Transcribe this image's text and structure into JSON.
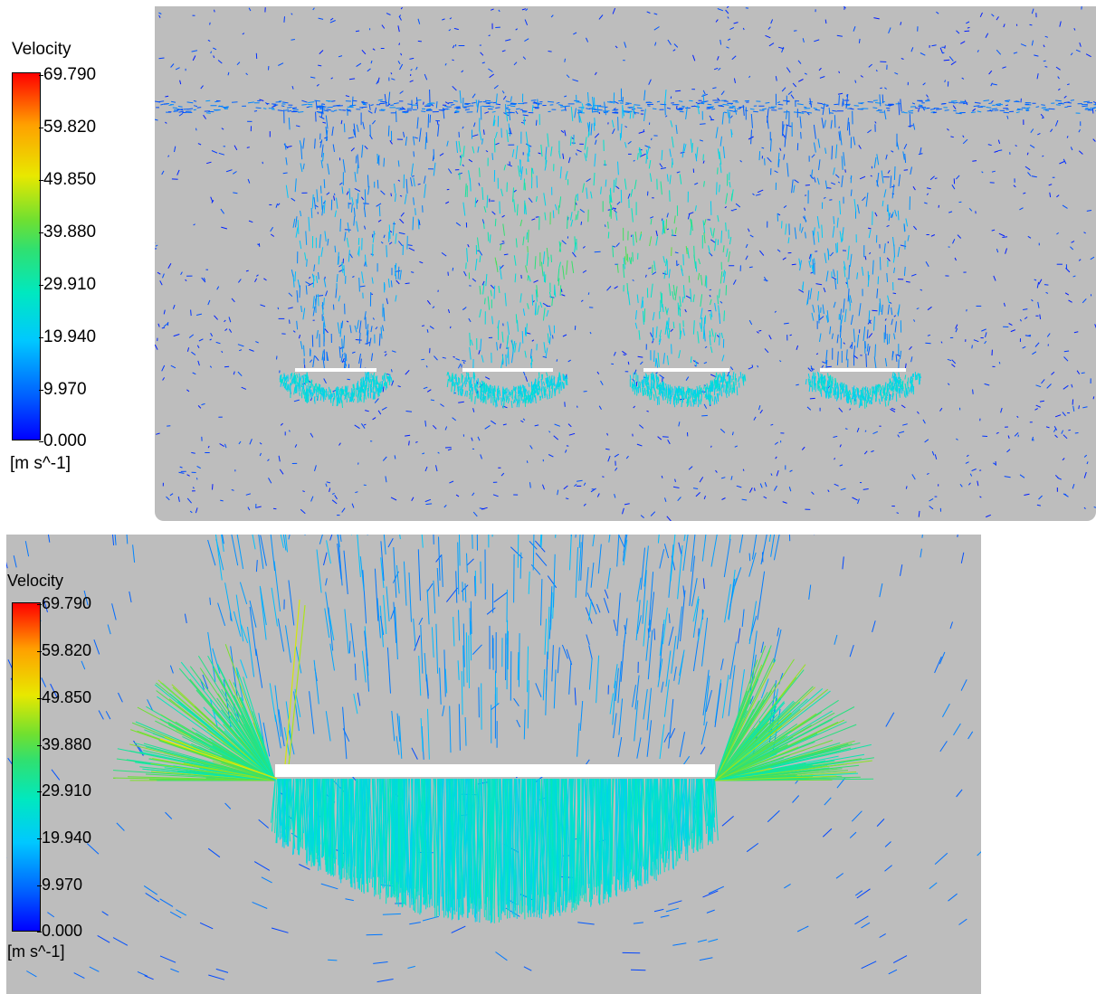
{
  "panels": [
    {
      "legend": {
        "title": "Velocity",
        "ticks": [
          "69.790",
          "59.820",
          "49.850",
          "39.880",
          "29.910",
          "19.940",
          "9.970",
          "0.000"
        ],
        "unit": "[m s^-1]"
      }
    },
    {
      "legend": {
        "title": "Velocity",
        "ticks": [
          "69.790",
          "59.820",
          "49.850",
          "39.880",
          "29.910",
          "19.940",
          "9.970",
          "0.000"
        ],
        "unit": "[m s^-1]"
      }
    }
  ],
  "colors": {
    "background": "#bdbdbd",
    "plate": "#ffffff",
    "low": "#0000ff",
    "mid": "#00e8c0",
    "high": "#ff0000"
  }
}
